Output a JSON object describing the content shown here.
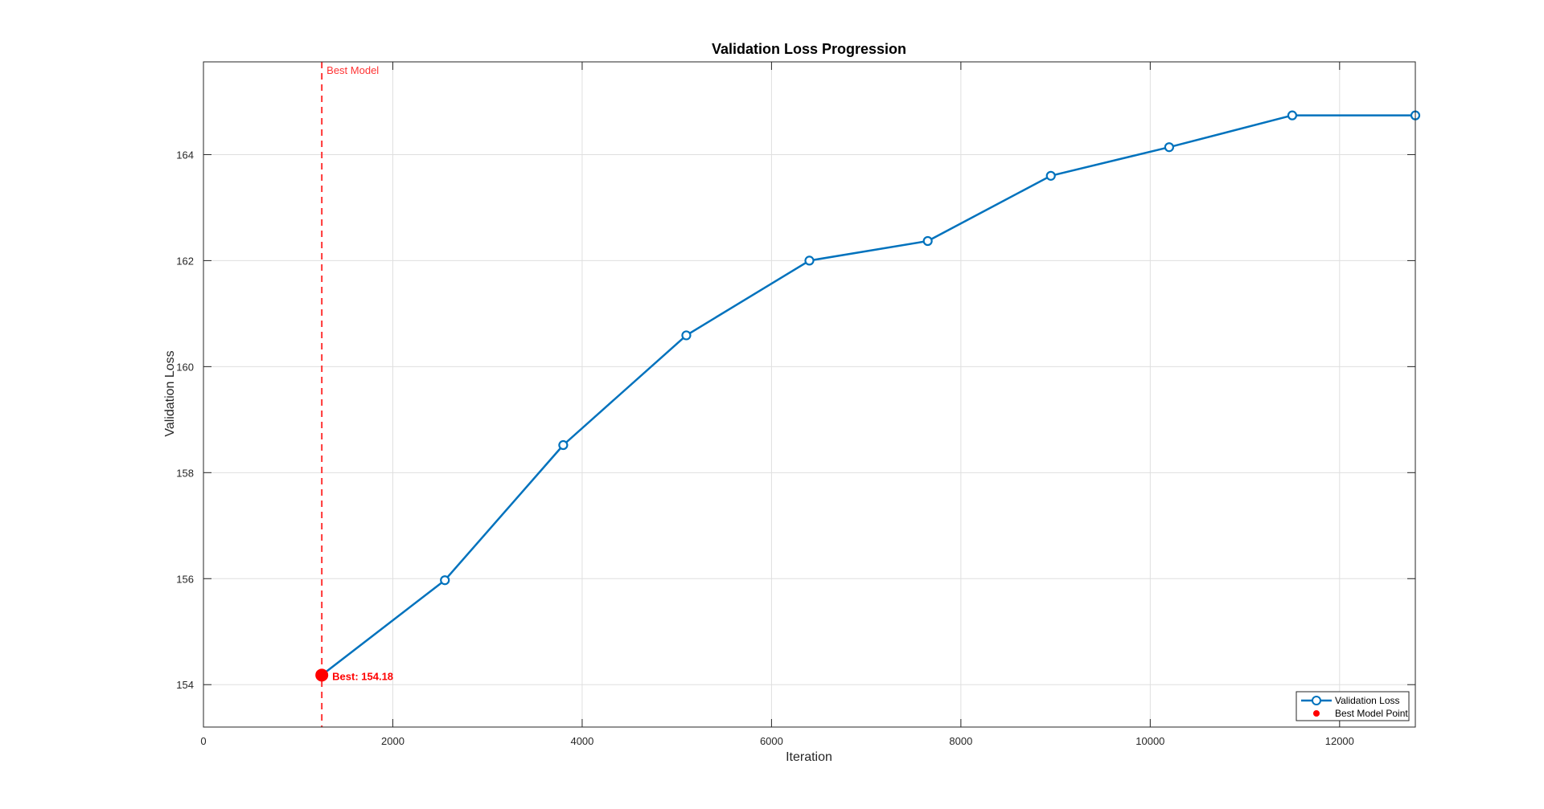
{
  "colors": {
    "series": "#0072BD",
    "best": "#FF0000",
    "refline": "#FF3333",
    "grid": "#DFDFDF",
    "axis": "#262626"
  },
  "chart_data": {
    "type": "line",
    "title": "Validation Loss Progression",
    "xlabel": "Iteration",
    "ylabel": "Validation Loss",
    "xlim": [
      0,
      12800
    ],
    "ylim": [
      153.2,
      165.75
    ],
    "xticks": [
      0,
      2000,
      4000,
      6000,
      8000,
      10000,
      12000
    ],
    "yticks": [
      154,
      156,
      158,
      160,
      162,
      164
    ],
    "grid": true,
    "legend_position": "bottom-right",
    "series": [
      {
        "name": "Validation Loss",
        "x": [
          1250,
          2550,
          3800,
          5100,
          6400,
          7650,
          8950,
          10200,
          11500,
          12800
        ],
        "y": [
          154.18,
          155.97,
          158.52,
          160.59,
          162.0,
          162.37,
          163.6,
          164.14,
          164.74,
          164.74
        ],
        "marker": "open-circle"
      },
      {
        "name": "Best Model Point",
        "x": [
          1250
        ],
        "y": [
          154.18
        ],
        "marker": "filled-circle"
      }
    ],
    "annotations": {
      "best_line_x": 1250,
      "best_line_label": "Best Model",
      "best_point_label": "Best: 154.18"
    }
  }
}
